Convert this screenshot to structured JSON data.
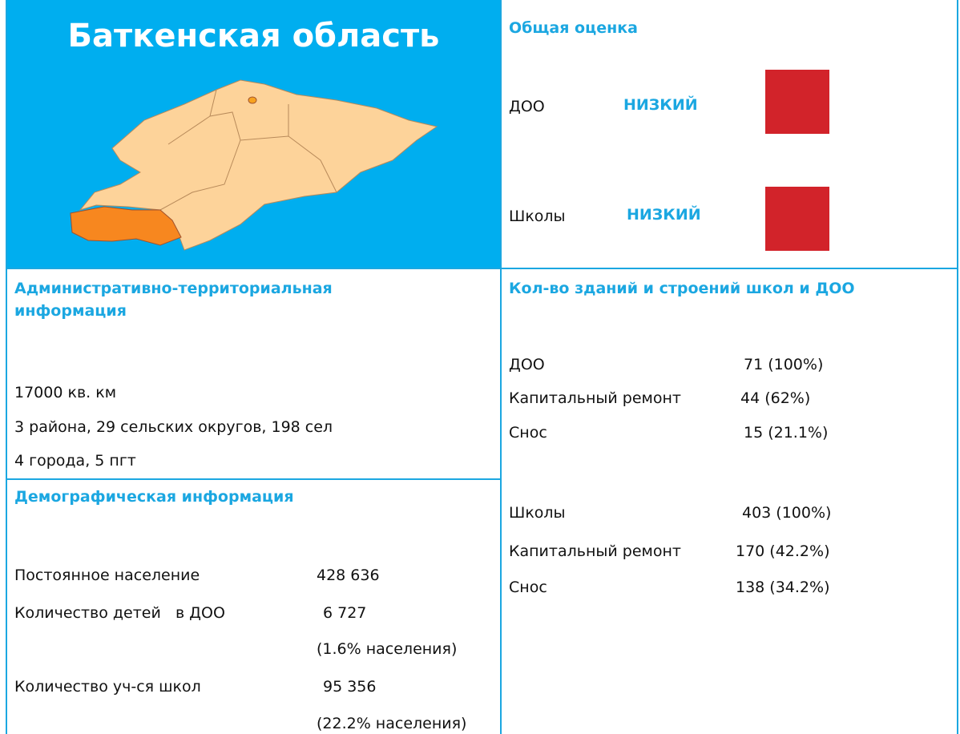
{
  "region": {
    "title": "Баткенская область"
  },
  "overall": {
    "title": "Общая оценка",
    "rows": [
      {
        "label": "ДОО",
        "level": "НИЗКИЙ",
        "color": "#d2232a"
      },
      {
        "label": "Школы",
        "level": "НИЗКИЙ",
        "color": "#d2232a"
      }
    ]
  },
  "admin": {
    "title": "Административно-территориальная информация",
    "lines": [
      "17000 кв. км",
      "3 района, 29 сельских округов, 198 сел",
      "4 города, 5 пгт"
    ]
  },
  "demo": {
    "title": "Демографическая информация",
    "rows": [
      {
        "label": "Постоянное население",
        "value": "428 636"
      },
      {
        "label": "Количество детей   в ДОО",
        "value": "6 727",
        "note": "(1.6% населения)"
      },
      {
        "label": "Количество уч-ся школ",
        "value": "95 356",
        "note": "(22.2% населения)"
      }
    ]
  },
  "buildings": {
    "title": "Кол-во зданий и строений школ и ДОО",
    "groups": [
      [
        {
          "label": "ДОО",
          "value": "71 (100%)"
        },
        {
          "label": "Капитальный ремонт",
          "value": "44 (62%)"
        },
        {
          "label": "Снос",
          "value": "15 (21.1%)"
        }
      ],
      [
        {
          "label": "Школы",
          "value": "403 (100%)"
        },
        {
          "label": "Капитальный ремонт",
          "value": "170 (42.2%)"
        },
        {
          "label": "Снос",
          "value": "138 (34.2%)"
        }
      ]
    ]
  }
}
